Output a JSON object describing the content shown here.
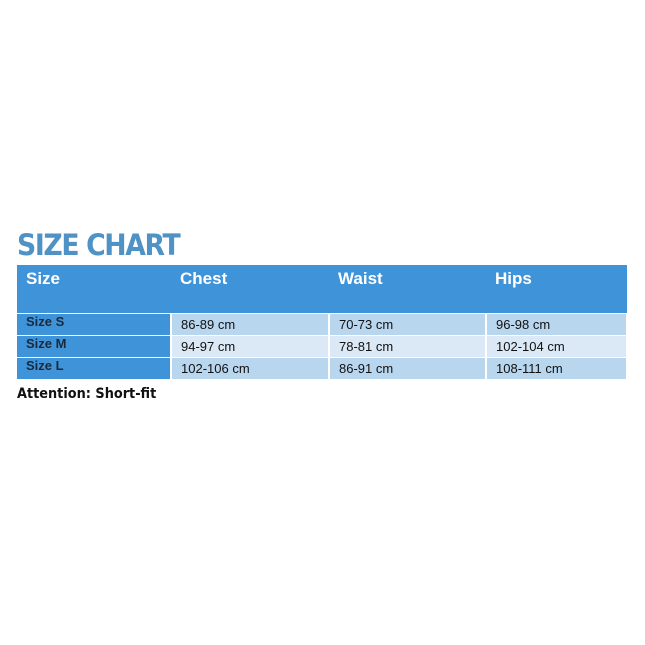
{
  "title": "SIZE CHART",
  "colors": {
    "title": "#4f92c6",
    "header": "#3f93d9",
    "row_dark": "#b9d6ef",
    "row_light": "#dbe9f6"
  },
  "table": {
    "headers": [
      "Size",
      "Chest",
      "Waist",
      "Hips"
    ],
    "rows": [
      [
        "Size S",
        "86-89 cm",
        "70-73 cm",
        "96-98 cm"
      ],
      [
        "Size M",
        "94-97 cm",
        "78-81 cm",
        "102-104 cm"
      ],
      [
        "Size L",
        "102-106 cm",
        "86-91 cm",
        "108-111 cm"
      ]
    ]
  },
  "note": "Attention: Short-fit"
}
